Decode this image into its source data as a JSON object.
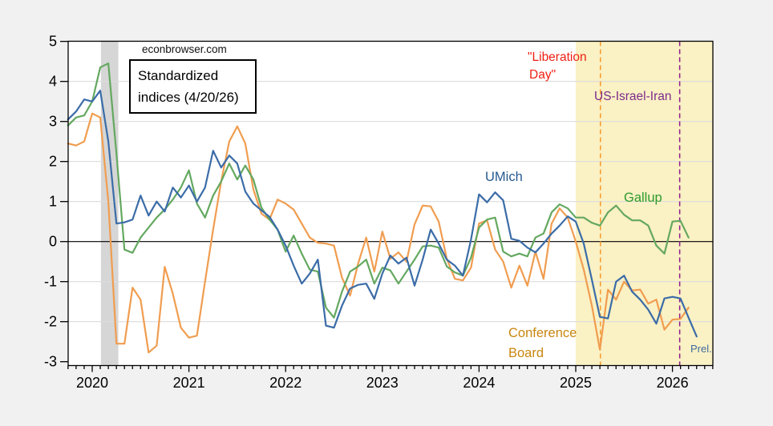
{
  "labels": {
    "watermark": "econbrowser.com",
    "note_line1": "Standardized",
    "note_line2": "indices (4/20/26)",
    "liberation_line1": "\"Liberation",
    "liberation_line2": "Day\"",
    "us_israel_iran": "US-Israel-Iran",
    "umich": "UMich",
    "gallup": "Gallup",
    "conference_line1": "Conference",
    "conference_line2": "Board",
    "prel": "Prel."
  },
  "colors": {
    "page_bg": "#f1f1f1",
    "plot_bg": "#ffffff",
    "grid": "#dcdcdc",
    "frame": "#000000",
    "zero_line": "#000000",
    "recession_band": "#d6d6d6",
    "highlight_band": "#faf1c4",
    "liberation_line": "#f59b2e",
    "us_israel_iran_line": "#8b1a8b",
    "liberation_text": "#ee1f13",
    "us_israel_iran_text": "#7d2b8b",
    "umich_text": "#25598f",
    "gallup_text": "#2d9a2d",
    "conference_text": "#c8860e",
    "prel_text": "#3f6a9e",
    "umich_line": "#3b6ca7",
    "gallup_line": "#64a860",
    "conference_line": "#f09d50"
  },
  "chart_data": {
    "type": "line",
    "title": "Standardized indices (4/20/26)",
    "x_axis": {
      "tick_years": [
        2020,
        2021,
        2022,
        2023,
        2024,
        2025,
        2026
      ],
      "range": [
        2019.75,
        2026.42
      ],
      "minor_ticks": "monthly"
    },
    "y_axis": {
      "ticks": [
        5,
        4,
        3,
        2,
        1,
        0,
        -1,
        -2,
        -3
      ],
      "range": [
        -3.1,
        5.0
      ],
      "gridlines": [
        4,
        3,
        2,
        1,
        -1,
        -2
      ]
    },
    "bands": [
      {
        "name": "recession-2020",
        "from": 2020.09,
        "to": 2020.27,
        "color_key": "recession_band"
      },
      {
        "name": "post-jan-2025",
        "from": 2025.0,
        "to": 2026.42,
        "color_key": "highlight_band"
      }
    ],
    "event_lines": [
      {
        "name": "liberation-day",
        "x": 2025.255,
        "color_key": "liberation_line"
      },
      {
        "name": "us-israel-iran",
        "x": 2026.075,
        "color_key": "us_israel_iran_line"
      }
    ],
    "series": [
      {
        "name": "Conference Board",
        "color_key": "conference_line",
        "start": "2019-10",
        "values": [
          2.45,
          2.4,
          2.5,
          3.2,
          3.1,
          1.0,
          -2.55,
          -2.55,
          -1.15,
          -1.45,
          -2.77,
          -2.6,
          -0.63,
          -1.3,
          -2.15,
          -2.4,
          -2.35,
          -1.0,
          0.3,
          1.5,
          2.5,
          2.88,
          2.45,
          1.3,
          0.7,
          0.55,
          1.05,
          0.95,
          0.8,
          0.45,
          0.1,
          -0.03,
          -0.05,
          -0.1,
          -0.9,
          -1.35,
          -0.55,
          0.1,
          -0.75,
          0.25,
          -0.43,
          -0.27,
          -0.5,
          0.43,
          0.9,
          0.88,
          0.5,
          -0.43,
          -0.93,
          -0.97,
          -0.65,
          0.45,
          0.53,
          -0.2,
          -0.5,
          -1.15,
          -0.6,
          -1.1,
          -0.25,
          -0.93,
          0.45,
          0.83,
          0.6,
          0.0,
          -0.7,
          -1.6,
          -2.7,
          -1.2,
          -1.45,
          -1.0,
          -1.22,
          -1.2,
          -1.55,
          -1.45,
          -2.2,
          -1.95,
          -1.93,
          -1.65
        ]
      },
      {
        "name": "Gallup",
        "color_key": "gallup_line",
        "start": "2019-10",
        "values": [
          2.9,
          3.1,
          3.15,
          3.5,
          4.35,
          4.45,
          2.2,
          -0.2,
          -0.28,
          0.1,
          0.35,
          0.6,
          0.8,
          1.05,
          1.35,
          1.78,
          0.95,
          0.6,
          1.15,
          1.5,
          1.95,
          1.55,
          1.9,
          1.55,
          0.85,
          0.55,
          0.3,
          -0.25,
          0.15,
          -0.3,
          -0.7,
          -0.75,
          -1.65,
          -1.9,
          -1.25,
          -0.75,
          -0.62,
          -0.45,
          -1.05,
          -0.65,
          -0.72,
          -1.05,
          -0.75,
          -0.45,
          -0.12,
          -0.1,
          -0.15,
          -0.62,
          -0.77,
          -0.85,
          -0.4,
          0.35,
          0.55,
          0.6,
          -0.25,
          -0.37,
          -0.3,
          -0.37,
          0.1,
          0.2,
          0.73,
          0.93,
          0.83,
          0.6,
          0.6,
          0.47,
          0.4,
          0.73,
          0.9,
          0.67,
          0.53,
          0.53,
          0.4,
          -0.1,
          -0.3,
          0.5,
          0.52,
          0.1
        ]
      },
      {
        "name": "UMich",
        "color_key": "umich_line",
        "start": "2019-10",
        "values": [
          3.05,
          3.25,
          3.55,
          3.5,
          3.77,
          2.5,
          0.45,
          0.48,
          0.55,
          1.15,
          0.65,
          1.0,
          0.75,
          1.35,
          1.1,
          1.4,
          1.0,
          1.35,
          2.27,
          1.85,
          2.15,
          1.95,
          1.25,
          0.95,
          0.78,
          0.62,
          0.3,
          -0.1,
          -0.6,
          -1.05,
          -0.8,
          -0.45,
          -2.1,
          -2.15,
          -1.6,
          -1.17,
          -1.08,
          -1.05,
          -1.43,
          -0.8,
          -0.35,
          -0.55,
          -0.4,
          -1.1,
          -0.45,
          0.3,
          -0.05,
          -0.45,
          -0.6,
          -0.85,
          0.05,
          1.18,
          0.98,
          1.23,
          1.03,
          0.07,
          0.02,
          -0.15,
          -0.27,
          -0.05,
          0.2,
          0.4,
          0.63,
          0.5,
          -0.05,
          -0.95,
          -1.88,
          -1.92,
          -1.0,
          -0.85,
          -1.25,
          -1.45,
          -1.7,
          -2.05,
          -1.42,
          -1.38,
          -1.42,
          -1.9,
          -2.37
        ]
      }
    ]
  }
}
